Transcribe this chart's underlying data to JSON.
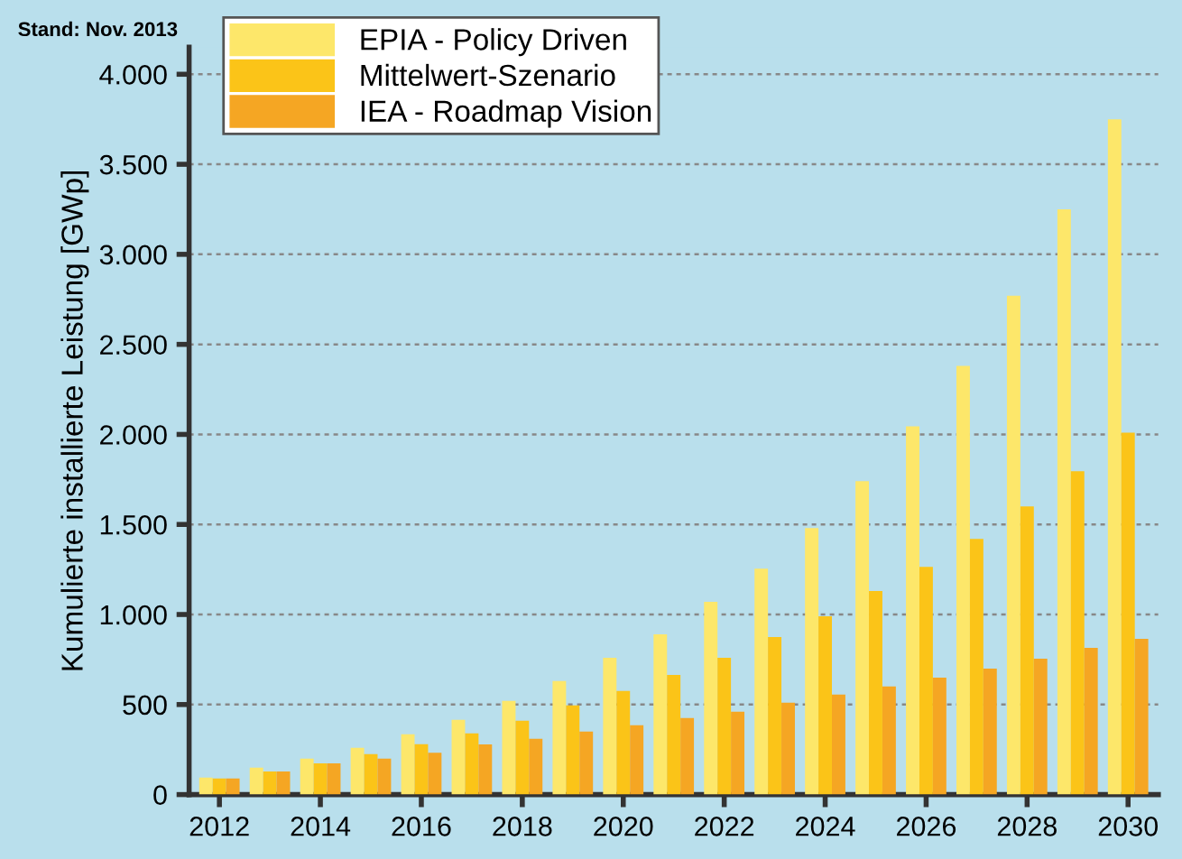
{
  "chart_data": {
    "type": "bar",
    "ylabel": "Kumulierte installierte Leistung [GWp]",
    "annotations": [
      "Stand: Nov. 2013"
    ],
    "categories": [
      "2012",
      null,
      "2014",
      null,
      "2016",
      null,
      "2018",
      null,
      "2020",
      null,
      "2022",
      null,
      "2024",
      null,
      "2026",
      null,
      "2028",
      null,
      "2030"
    ],
    "series": [
      {
        "name": "EPIA - Policy Driven",
        "color": "#fde76a",
        "values": [
          94,
          150,
          200,
          260,
          335,
          415,
          520,
          630,
          760,
          890,
          1070,
          1255,
          1480,
          1740,
          2045,
          2380,
          2770,
          3250,
          3750
        ]
      },
      {
        "name": "Mittelwert-Szenario",
        "color": "#fbc418",
        "values": [
          90,
          128,
          173,
          225,
          280,
          340,
          410,
          495,
          575,
          665,
          760,
          875,
          990,
          1130,
          1265,
          1420,
          1600,
          1795,
          2010
        ]
      },
      {
        "name": "IEA - Roadmap Vision",
        "color": "#f5a623",
        "values": [
          90,
          128,
          173,
          200,
          232,
          278,
          310,
          350,
          385,
          425,
          460,
          510,
          555,
          600,
          650,
          700,
          755,
          815,
          865
        ]
      }
    ],
    "ylim": [
      0,
      4150
    ],
    "yticks": [
      0,
      500,
      {
        "value": 1000,
        "label": "1.000"
      },
      {
        "value": 1500,
        "label": "1.500"
      },
      {
        "value": 2000,
        "label": "2.000"
      },
      {
        "value": 2500,
        "label": "2.500"
      },
      {
        "value": 3000,
        "label": "3.000"
      },
      {
        "value": 3500,
        "label": "3.500"
      },
      {
        "value": 4000,
        "label": "4.000"
      }
    ],
    "grid": "y",
    "legend": "top left"
  }
}
